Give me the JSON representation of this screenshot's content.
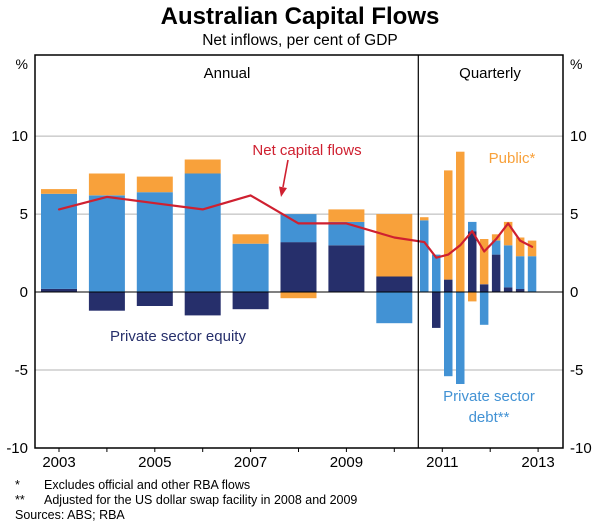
{
  "chart_data": {
    "type": "bar",
    "subtype": "stacked-bars-with-line-two-panels",
    "title": "Australian Capital Flows",
    "subtitle": "Net inflows, per cent of GDP",
    "y_unit": "%",
    "ylim": [
      -10,
      15.2
    ],
    "yticks": [
      10,
      5,
      0,
      -5,
      -10
    ],
    "xlim": [
      2002.5,
      2013.52
    ],
    "xticks": [
      2003,
      2005,
      2007,
      2009,
      2011,
      2013
    ],
    "panel_divider_x": 2010.5,
    "panels": {
      "annual_label": "Annual",
      "quarterly_label": "Quarterly"
    },
    "colors": {
      "equity": "#262f6b",
      "debt": "#4292d4",
      "public": "#f8a13b",
      "net": "#cf2030",
      "grid": "#b3b3b3",
      "frame": "#000000"
    },
    "series_order": [
      "equity",
      "debt",
      "public"
    ],
    "legend": {
      "equity": "Private sector equity",
      "debt": "Private sector debt**",
      "public": "Public*",
      "net": "Net capital flows"
    },
    "annual": {
      "x": [
        2003,
        2004,
        2005,
        2006,
        2007,
        2008,
        2009,
        2010
      ],
      "equity": [
        0.2,
        -1.2,
        -0.9,
        -1.5,
        -1.1,
        3.2,
        3.0,
        1.0
      ],
      "debt": [
        6.1,
        6.2,
        6.4,
        7.6,
        3.1,
        1.8,
        1.5,
        -2.0
      ],
      "public": [
        0.3,
        1.4,
        1.0,
        0.9,
        0.6,
        -0.4,
        0.8,
        4.0
      ],
      "net": [
        5.3,
        6.1,
        5.7,
        5.3,
        6.2,
        4.4,
        4.4,
        3.5
      ]
    },
    "quarterly": {
      "x": [
        2010.625,
        2010.875,
        2011.125,
        2011.375,
        2011.625,
        2011.875,
        2012.125,
        2012.375,
        2012.625,
        2012.875
      ],
      "equity": [
        0.0,
        -2.3,
        0.8,
        0.0,
        3.9,
        0.5,
        2.4,
        0.3,
        0.2,
        0.0
      ],
      "debt": [
        4.6,
        2.4,
        -5.4,
        -5.9,
        0.6,
        -2.1,
        0.9,
        2.7,
        2.1,
        2.3
      ],
      "public": [
        0.2,
        0.0,
        7.0,
        9.0,
        -0.6,
        2.9,
        0.4,
        1.5,
        1.2,
        1.0
      ],
      "net": [
        3.2,
        2.2,
        2.4,
        3.0,
        3.9,
        2.6,
        3.4,
        4.4,
        3.3,
        2.9
      ]
    },
    "annotations": {
      "net": "Net capital flows",
      "public": "Public*",
      "equity": "Private sector equity",
      "debt_line1": "Private sector",
      "debt_line2": "debt**"
    },
    "footnotes": [
      {
        "marker": "*",
        "text": "Excludes official and other RBA flows"
      },
      {
        "marker": "**",
        "text": "Adjusted for the US dollar swap facility in 2008 and 2009"
      }
    ],
    "sources": "Sources: ABS; RBA"
  }
}
